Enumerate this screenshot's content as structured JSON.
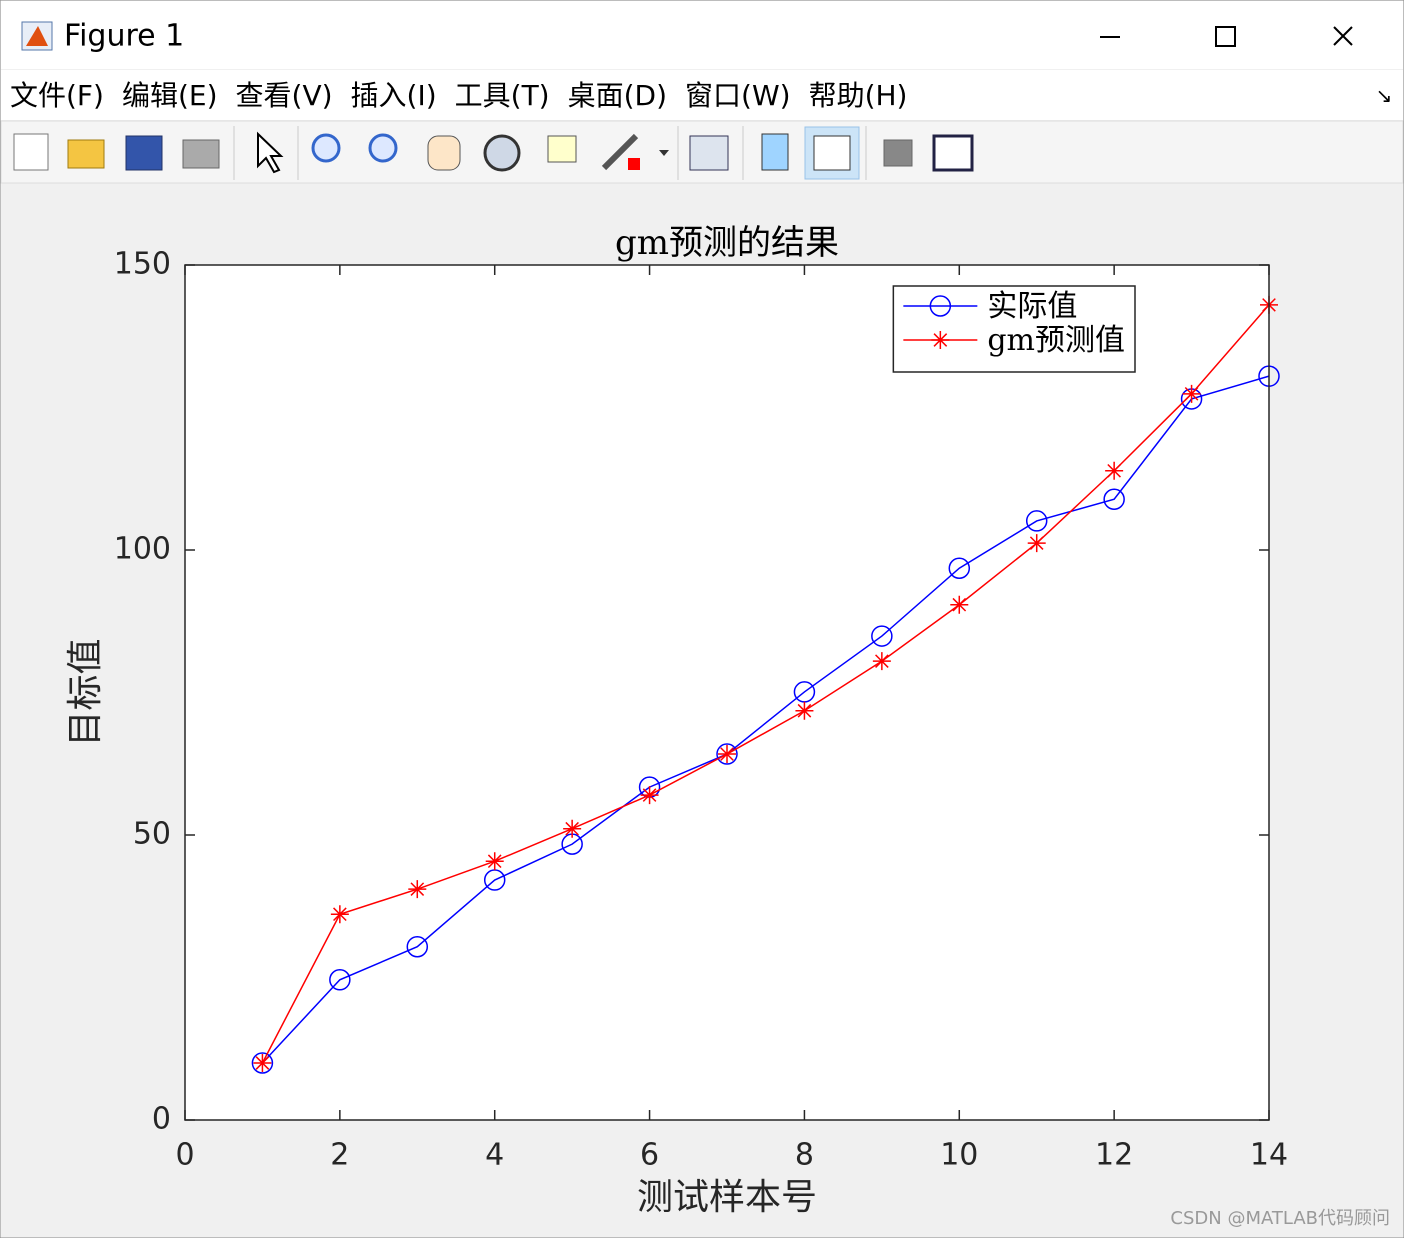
{
  "window": {
    "title": "Figure 1"
  },
  "menu": [
    "文件(F)",
    "编辑(E)",
    "查看(V)",
    "插入(I)",
    "工具(T)",
    "桌面(D)",
    "窗口(W)",
    "帮助(H)"
  ],
  "watermark": "CSDN @MATLAB代码顾问",
  "chart_data": {
    "type": "line",
    "title": "gm预测的结果",
    "x_label": "测试样本号",
    "y_label": "目标值",
    "x": [
      1,
      2,
      3,
      4,
      5,
      6,
      7,
      8,
      9,
      10,
      11,
      12,
      13,
      14
    ],
    "series": [
      {
        "name": "实际值",
        "color": "#0000ff",
        "marker": "circle",
        "values": [
          10,
          24.6,
          30.4,
          42.1,
          48.4,
          58.4,
          64.2,
          75.1,
          84.9,
          96.8,
          105.1,
          108.9,
          126.5,
          130.5
        ]
      },
      {
        "name": "gm预测值",
        "color": "#ff0000",
        "marker": "star",
        "values": [
          10,
          36.1,
          40.5,
          45.4,
          51.1,
          57.0,
          64.2,
          71.8,
          80.5,
          90.4,
          101.2,
          113.9,
          127.4,
          143.0
        ]
      }
    ],
    "xlim": [
      0,
      14
    ],
    "xticks": [
      0,
      2,
      4,
      6,
      8,
      10,
      12,
      14
    ],
    "ylim": [
      0,
      150
    ],
    "yticks": [
      0,
      50,
      100,
      150
    ],
    "grid": false,
    "legend": "northeast"
  }
}
